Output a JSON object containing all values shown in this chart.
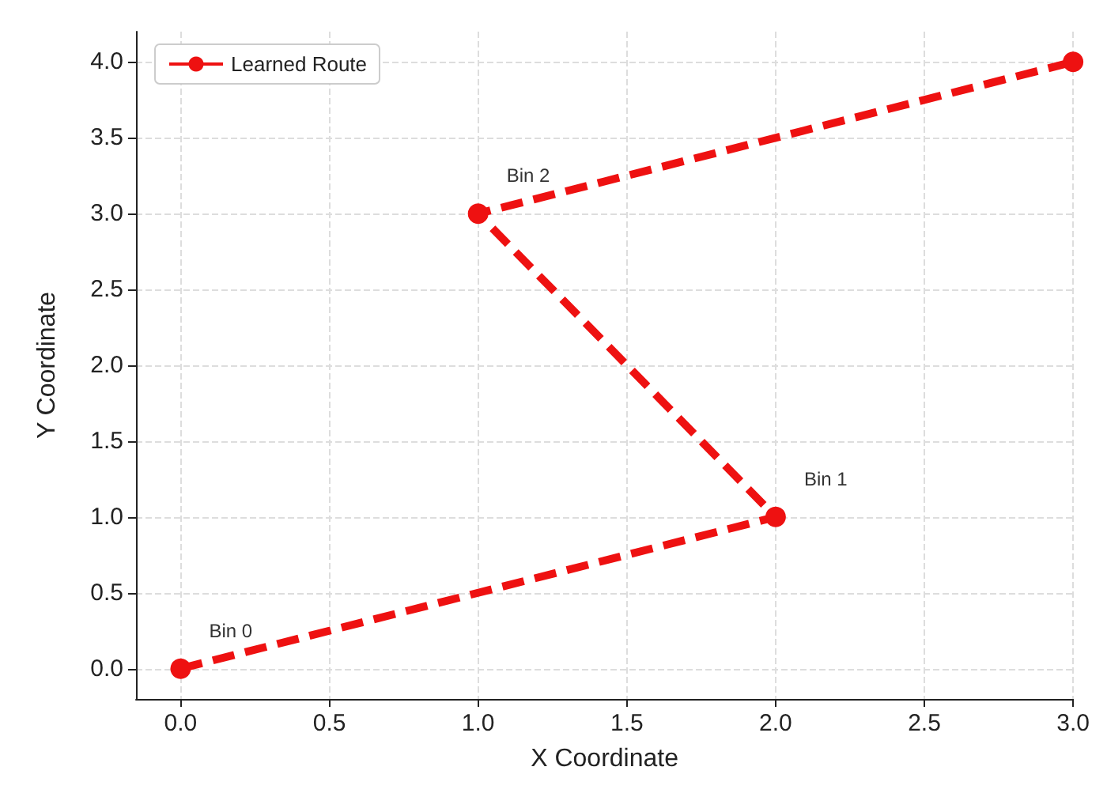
{
  "chart_data": {
    "type": "line",
    "xlabel": "X Coordinate",
    "ylabel": "Y Coordinate",
    "x": [
      0,
      2,
      1,
      3
    ],
    "series": [
      {
        "name": "Learned Route",
        "color": "#ee1111",
        "values": [
          0,
          1,
          3,
          4
        ]
      }
    ],
    "xlim": [
      -0.15,
      3.0
    ],
    "xticks": [
      {
        "value": 0,
        "label": "0.0"
      },
      0.5,
      {
        "value": 1,
        "label": "1.0"
      },
      1.5,
      {
        "value": 2,
        "label": "2.0"
      },
      2.5,
      {
        "value": 3,
        "label": "3.0"
      }
    ],
    "ylim": [
      -0.2,
      4.2
    ],
    "yticks": [
      {
        "value": 0,
        "label": "0.0"
      },
      0.5,
      {
        "value": 1,
        "label": "1.0"
      },
      1.5,
      {
        "value": 2,
        "label": "2.0"
      },
      2.5,
      {
        "value": 3,
        "label": "3.0"
      },
      3.5,
      {
        "value": 4,
        "label": "4.0"
      }
    ],
    "annotations": [
      {
        "text": "Bin 0",
        "x": 0,
        "y": 0
      },
      {
        "text": "Bin 1",
        "x": 2,
        "y": 1
      },
      {
        "text": "Bin 2",
        "x": 1,
        "y": 3
      }
    ],
    "grid": true,
    "legend": "top left",
    "marker": "circle",
    "line_style": "dashed"
  }
}
